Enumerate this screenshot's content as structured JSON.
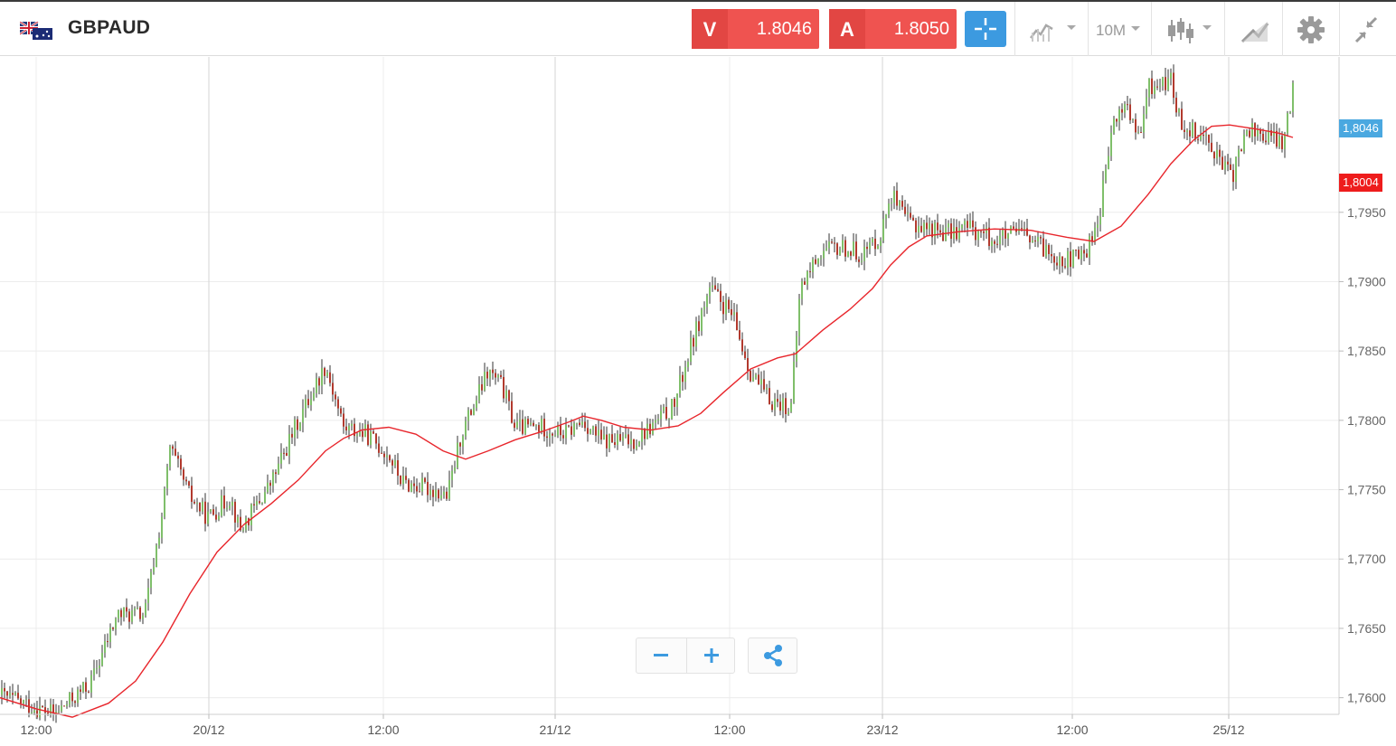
{
  "header": {
    "symbol": "GBPAUD",
    "sell": {
      "label": "V",
      "price": "1.8046"
    },
    "buy": {
      "label": "A",
      "price": "1.8050"
    },
    "timeframe": "10M"
  },
  "icons": [
    "uk-australia-flag-icon",
    "crosshair-icon",
    "line-chart-icon",
    "candlestick-icon",
    "drawing-tools-icon",
    "gear-icon",
    "collapse-icon",
    "minus-icon",
    "plus-icon",
    "share-icon"
  ],
  "colors": {
    "up": "#7fbf6a",
    "down": "#b23a2e",
    "ma": "#e8262c",
    "accent": "#3c9ae0",
    "sell_buy": "#ef5350",
    "last_label": "#4aa8e0",
    "ma_label": "#ee1c1c"
  },
  "labels": {
    "last_price": "1,8046",
    "ma_value": "1,8004"
  },
  "chart_data": {
    "type": "candlestick",
    "title": "GBPAUD",
    "grid": true,
    "y_ticks": [
      "1,7600",
      "1,7650",
      "1,7700",
      "1,7750",
      "1,7800",
      "1,7850",
      "1,7900",
      "1,7950"
    ],
    "ylim": [
      1.7588,
      1.8062
    ],
    "x_ticks": [
      "12:00",
      "20/12",
      "12:00",
      "21/12",
      "12:00",
      "23/12",
      "12:00",
      "25/12"
    ],
    "close_path": [
      [
        0,
        1.7602
      ],
      [
        60,
        1.7588
      ],
      [
        100,
        1.761
      ],
      [
        130,
        1.766
      ],
      [
        160,
        1.766
      ],
      [
        180,
        1.7735
      ],
      [
        188,
        1.778
      ],
      [
        210,
        1.7745
      ],
      [
        230,
        1.773
      ],
      [
        255,
        1.7745
      ],
      [
        265,
        1.772
      ],
      [
        300,
        1.7755
      ],
      [
        330,
        1.78
      ],
      [
        360,
        1.784
      ],
      [
        380,
        1.7795
      ],
      [
        405,
        1.779
      ],
      [
        430,
        1.7775
      ],
      [
        445,
        1.7755
      ],
      [
        480,
        1.775
      ],
      [
        495,
        1.7745
      ],
      [
        510,
        1.779
      ],
      [
        540,
        1.7835
      ],
      [
        555,
        1.7825
      ],
      [
        570,
        1.7795
      ],
      [
        600,
        1.7795
      ],
      [
        625,
        1.779
      ],
      [
        645,
        1.78
      ],
      [
        665,
        1.7785
      ],
      [
        700,
        1.7785
      ],
      [
        720,
        1.7795
      ],
      [
        745,
        1.781
      ],
      [
        765,
        1.7855
      ],
      [
        785,
        1.7895
      ],
      [
        810,
        1.7875
      ],
      [
        830,
        1.7835
      ],
      [
        850,
        1.7815
      ],
      [
        875,
        1.781
      ],
      [
        885,
        1.7895
      ],
      [
        905,
        1.792
      ],
      [
        930,
        1.7925
      ],
      [
        955,
        1.792
      ],
      [
        975,
        1.7935
      ],
      [
        985,
        1.7965
      ],
      [
        1000,
        1.7945
      ],
      [
        1020,
        1.794
      ],
      [
        1050,
        1.7935
      ],
      [
        1070,
        1.794
      ],
      [
        1100,
        1.793
      ],
      [
        1130,
        1.7935
      ],
      [
        1150,
        1.7925
      ],
      [
        1180,
        1.7915
      ],
      [
        1200,
        1.792
      ],
      [
        1215,
        1.7945
      ],
      [
        1230,
        1.801
      ],
      [
        1245,
        1.803
      ],
      [
        1260,
        1.8
      ],
      [
        1270,
        1.804
      ],
      [
        1295,
        1.8045
      ],
      [
        1305,
        1.8015
      ],
      [
        1320,
        1.801
      ],
      [
        1340,
        1.8
      ],
      [
        1350,
        1.7985
      ],
      [
        1362,
        1.7975
      ],
      [
        1380,
        1.801
      ],
      [
        1400,
        1.8005
      ],
      [
        1420,
        1.8
      ],
      [
        1432,
        1.8048
      ]
    ],
    "moving_average": [
      [
        0,
        1.76
      ],
      [
        40,
        1.7592
      ],
      [
        80,
        1.7586
      ],
      [
        120,
        1.7596
      ],
      [
        150,
        1.7612
      ],
      [
        180,
        1.764
      ],
      [
        210,
        1.7675
      ],
      [
        240,
        1.7705
      ],
      [
        270,
        1.7725
      ],
      [
        300,
        1.774
      ],
      [
        330,
        1.7757
      ],
      [
        360,
        1.7778
      ],
      [
        380,
        1.7787
      ],
      [
        400,
        1.7793
      ],
      [
        430,
        1.7795
      ],
      [
        460,
        1.779
      ],
      [
        490,
        1.7778
      ],
      [
        515,
        1.7772
      ],
      [
        540,
        1.7778
      ],
      [
        570,
        1.7786
      ],
      [
        600,
        1.7792
      ],
      [
        630,
        1.7799
      ],
      [
        645,
        1.7803
      ],
      [
        665,
        1.78
      ],
      [
        690,
        1.7795
      ],
      [
        720,
        1.7793
      ],
      [
        750,
        1.7796
      ],
      [
        775,
        1.7805
      ],
      [
        800,
        1.782
      ],
      [
        830,
        1.7837
      ],
      [
        860,
        1.7845
      ],
      [
        880,
        1.7848
      ],
      [
        910,
        1.7865
      ],
      [
        940,
        1.788
      ],
      [
        965,
        1.7895
      ],
      [
        985,
        1.7912
      ],
      [
        1005,
        1.7925
      ],
      [
        1025,
        1.7933
      ],
      [
        1060,
        1.7936
      ],
      [
        1100,
        1.7938
      ],
      [
        1140,
        1.7937
      ],
      [
        1180,
        1.7932
      ],
      [
        1210,
        1.7929
      ],
      [
        1240,
        1.794
      ],
      [
        1270,
        1.7963
      ],
      [
        1295,
        1.7985
      ],
      [
        1320,
        1.8002
      ],
      [
        1340,
        1.8012
      ],
      [
        1360,
        1.8013
      ],
      [
        1390,
        1.801
      ],
      [
        1415,
        1.8007
      ],
      [
        1430,
        1.8004
      ]
    ]
  }
}
